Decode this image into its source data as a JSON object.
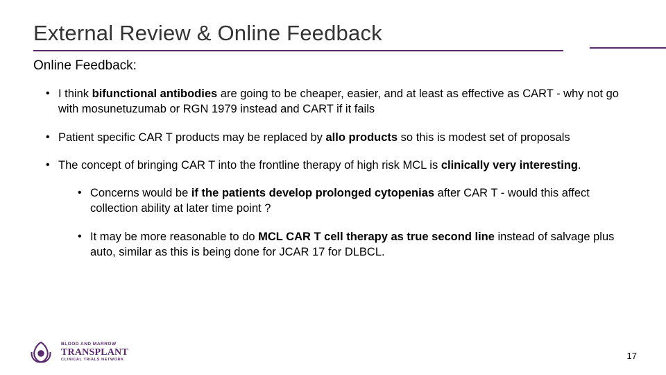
{
  "colors": {
    "accent": "#5a2a6e",
    "title_text": "#333333",
    "body_text": "#000000",
    "background": "#ffffff"
  },
  "typography": {
    "title_fontsize": 31,
    "subtitle_fontsize": 19,
    "body_fontsize": 16.5,
    "line_height": 1.35
  },
  "title": "External Review & Online Feedback",
  "subtitle": "Online Feedback:",
  "bullets": [
    {
      "segments": [
        {
          "t": "I think ",
          "b": false
        },
        {
          "t": "bifunctional antibodies",
          "b": true
        },
        {
          "t": " are going to be cheaper, easier, and at least as effective as CART - why not go with mosunetuzumab or RGN 1979 instead and CART if it fails",
          "b": false
        }
      ]
    },
    {
      "segments": [
        {
          "t": "Patient specific CAR T products may be replaced by ",
          "b": false
        },
        {
          "t": "allo products",
          "b": true
        },
        {
          "t": " so this is modest set of proposals",
          "b": false
        }
      ]
    },
    {
      "segments": [
        {
          "t": "The concept of bringing CAR T into the frontline therapy of high risk MCL is ",
          "b": false
        },
        {
          "t": "clinically very interesting",
          "b": true
        },
        {
          "t": ".",
          "b": false
        }
      ],
      "sub": [
        {
          "segments": [
            {
              "t": "Concerns would be ",
              "b": false
            },
            {
              "t": "if the patients develop prolonged cytopenias",
              "b": true
            },
            {
              "t": " after CAR T - would this affect collection ability at later time point ?",
              "b": false
            }
          ]
        },
        {
          "segments": [
            {
              "t": "It may be more reasonable to do ",
              "b": false
            },
            {
              "t": "MCL CAR T cell therapy as true second line",
              "b": true
            },
            {
              "t": " instead of salvage plus auto, similar as this is being done for JCAR 17 for DLBCL.",
              "b": false
            }
          ]
        }
      ]
    }
  ],
  "logo": {
    "line1": "BLOOD AND MARROW",
    "line2": "TRANSPLANT",
    "line3": "CLINICAL TRIALS NETWORK",
    "icon_color": "#5a2a6e"
  },
  "page_number": "17"
}
